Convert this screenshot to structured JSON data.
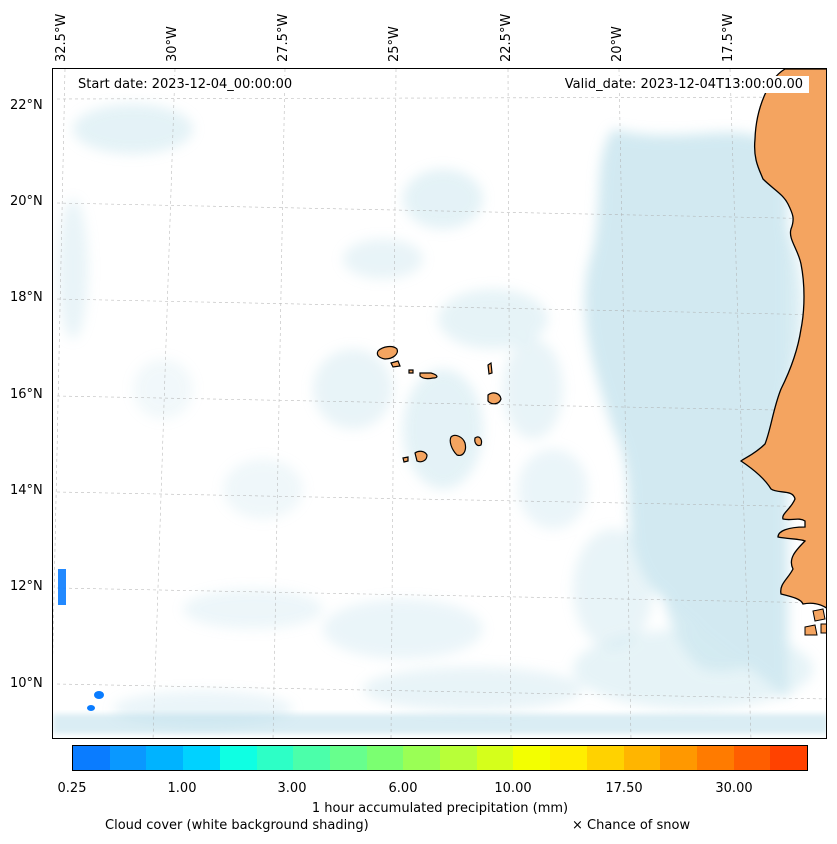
{
  "map": {
    "lon_labels": [
      "32.5°W",
      "30°W",
      "27.5°W",
      "25°W",
      "22.5°W",
      "20°W",
      "17.5°W"
    ],
    "lat_labels": [
      "22°N",
      "20°N",
      "18°N",
      "16°N",
      "14°N",
      "12°N",
      "10°N"
    ],
    "start_date": "Start date: 2023-12-04_00:00:00",
    "valid_date": "Valid_date: 2023-12-04T13:00:00.00",
    "land_color": "#f4a460",
    "cloud_color": "#add8e6"
  },
  "colorbar": {
    "colors": [
      "#0a7cff",
      "#0a98ff",
      "#00b3ff",
      "#00d2ff",
      "#0fffe3",
      "#2dffc6",
      "#4bffaa",
      "#67ff8d",
      "#7bff71",
      "#9aff55",
      "#b8ff38",
      "#d5ff1b",
      "#f3ff00",
      "#ffee00",
      "#ffd200",
      "#ffb500",
      "#ff9800",
      "#ff7b00",
      "#ff5e00",
      "#ff4200"
    ],
    "ticks": [
      "0.25",
      "1.00",
      "3.00",
      "6.00",
      "10.00",
      "17.50",
      "30.00"
    ],
    "label": "1 hour accumulated precipitation (mm)"
  },
  "legend": {
    "cloud": "Cloud cover (white background shading)",
    "snow": "× Chance of snow"
  }
}
